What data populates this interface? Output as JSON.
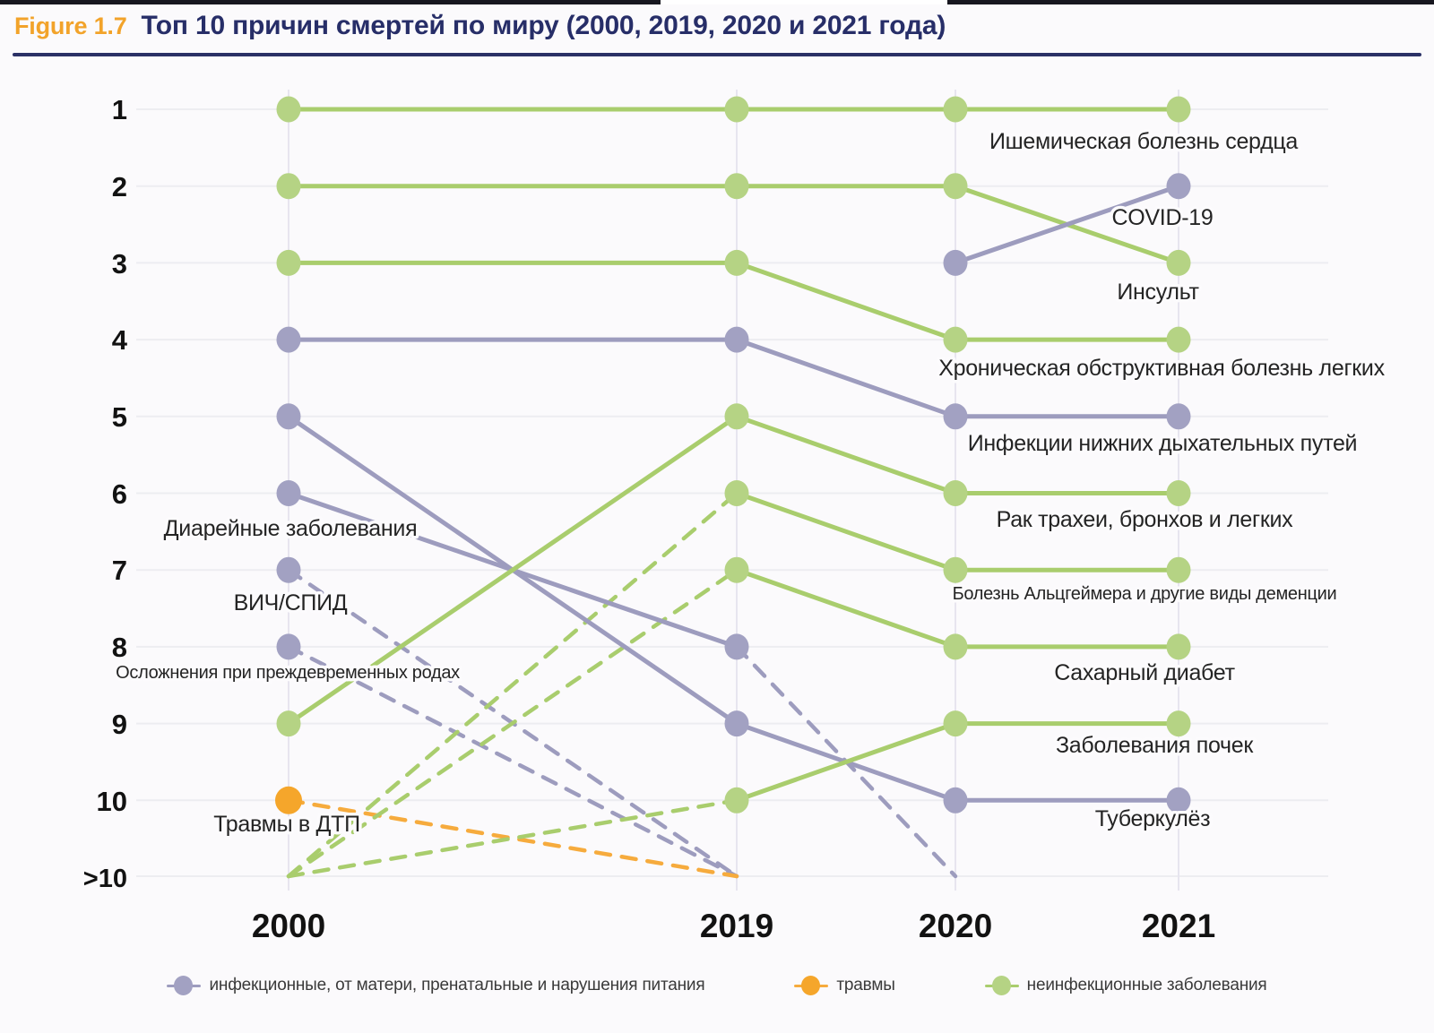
{
  "header": {
    "figure_label": "Figure 1.7",
    "title": "Топ 10 причин смертей по миру (2000, 2019, 2020 и 2021 года)"
  },
  "colors": {
    "title": "#272e68",
    "figure_label": "#f2a32a",
    "title_underline": "#2b3166",
    "background": "#fbfafc",
    "grid_horizontal": "#ededf1",
    "grid_vertical": "#e7e5ef",
    "axis_text": "#121212",
    "label_text": "#242424"
  },
  "chart_data": {
    "type": "bump",
    "title": "Топ 10 причин смертей по миру (2000, 2019, 2020 и 2021 года)",
    "years": [
      "2000",
      "2019",
      "2020",
      "2021"
    ],
    "rank_axis": [
      "1",
      "2",
      "3",
      "4",
      "5",
      "6",
      "7",
      "8",
      "9",
      "10",
      ">10"
    ],
    "rank_over_10_value": 11,
    "line_style_note": "solid = within top 10; dashed = entering from or leaving to rank >10",
    "categories": [
      {
        "id": "infectious",
        "label": "инфекционные, от матери, пренатальные и нарушения питания",
        "color": "#a2a1c2",
        "line_color": "#9d9cbe"
      },
      {
        "id": "injuries",
        "label": "травмы",
        "color": "#f5a62b",
        "line_color": "#f6ab3d"
      },
      {
        "id": "noncommunicable",
        "label": "неинфекционные заболевания",
        "color": "#b5d384",
        "line_color": "#a9cd6d"
      }
    ],
    "series": [
      {
        "name": "Ишемическая болезнь сердца",
        "category": "noncommunicable",
        "ranks": [
          1,
          1,
          1,
          1
        ]
      },
      {
        "name": "Инсульт",
        "category": "noncommunicable",
        "ranks": [
          2,
          2,
          2,
          3
        ]
      },
      {
        "name": "Хроническая обструктивная болезнь легких",
        "category": "noncommunicable",
        "ranks": [
          3,
          3,
          4,
          4
        ]
      },
      {
        "name": "Инфекции нижних дыхательных путей",
        "category": "infectious",
        "ranks": [
          4,
          4,
          5,
          5
        ]
      },
      {
        "name": "Туберкулёз",
        "category": "infectious",
        "ranks": [
          5,
          9,
          10,
          10
        ]
      },
      {
        "name": "Диарейные заболевания",
        "category": "infectious",
        "ranks": [
          6,
          8,
          11,
          null
        ]
      },
      {
        "name": "ВИЧ/СПИД",
        "category": "infectious",
        "ranks": [
          7,
          11,
          null,
          null
        ]
      },
      {
        "name": "Осложнения при преждевременных родах",
        "category": "infectious",
        "ranks": [
          8,
          11,
          null,
          null
        ]
      },
      {
        "name": "Рак трахеи, бронхов и легких",
        "category": "noncommunicable",
        "ranks": [
          9,
          5,
          6,
          6
        ]
      },
      {
        "name": "Травмы в ДТП",
        "category": "injuries",
        "ranks": [
          10,
          11,
          null,
          null
        ]
      },
      {
        "name": "COVID-19",
        "category": "infectious",
        "ranks": [
          null,
          null,
          3,
          2
        ]
      },
      {
        "name": "Болезнь Альцгеймера и другие виды деменции",
        "category": "noncommunicable",
        "ranks": [
          11,
          6,
          7,
          7
        ]
      },
      {
        "name": "Сахарный диабет",
        "category": "noncommunicable",
        "ranks": [
          11,
          7,
          8,
          8
        ]
      },
      {
        "name": "Заболевания почек",
        "category": "noncommunicable",
        "ranks": [
          11,
          10,
          9,
          9
        ]
      }
    ]
  }
}
